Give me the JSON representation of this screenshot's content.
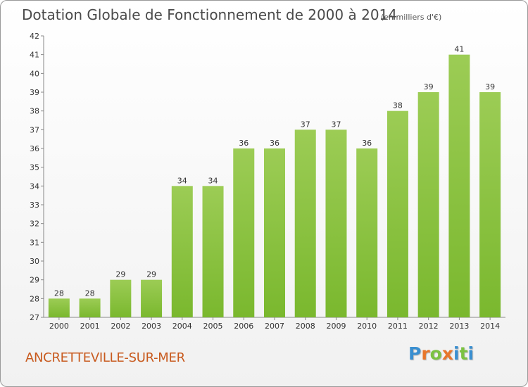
{
  "header": {
    "title": "Dotation Globale de Fonctionnement de 2000 à 2014",
    "unit": "(en milliers d'€)"
  },
  "footer": {
    "commune": "ANCRETTEVILLE-SUR-MER",
    "logo": {
      "letters": [
        "P",
        "r",
        "o",
        "x",
        "i",
        "t",
        "i"
      ],
      "colors": [
        "#3a8fd0",
        "#e8762b",
        "#7cc242",
        "#e8762b",
        "#3a8fd0",
        "#7cc242",
        "#3a8fd0"
      ]
    }
  },
  "chart_data": {
    "type": "bar",
    "title": "Dotation Globale de Fonctionnement de 2000 à 2014",
    "subtitle": "(en milliers d'€)",
    "categories": [
      "2000",
      "2001",
      "2002",
      "2003",
      "2004",
      "2005",
      "2006",
      "2007",
      "2008",
      "2009",
      "2010",
      "2011",
      "2012",
      "2013",
      "2014"
    ],
    "values": [
      28,
      28,
      29,
      29,
      34,
      34,
      36,
      36,
      37,
      37,
      36,
      38,
      39,
      41,
      39
    ],
    "ylim": [
      27,
      42
    ],
    "yticks": [
      27,
      28,
      29,
      30,
      31,
      32,
      33,
      34,
      35,
      36,
      37,
      38,
      39,
      40,
      41,
      42
    ],
    "grid": false,
    "bar_color": "#7ab82e",
    "bar_color_light": "#9ccc55",
    "data_labels": true
  }
}
